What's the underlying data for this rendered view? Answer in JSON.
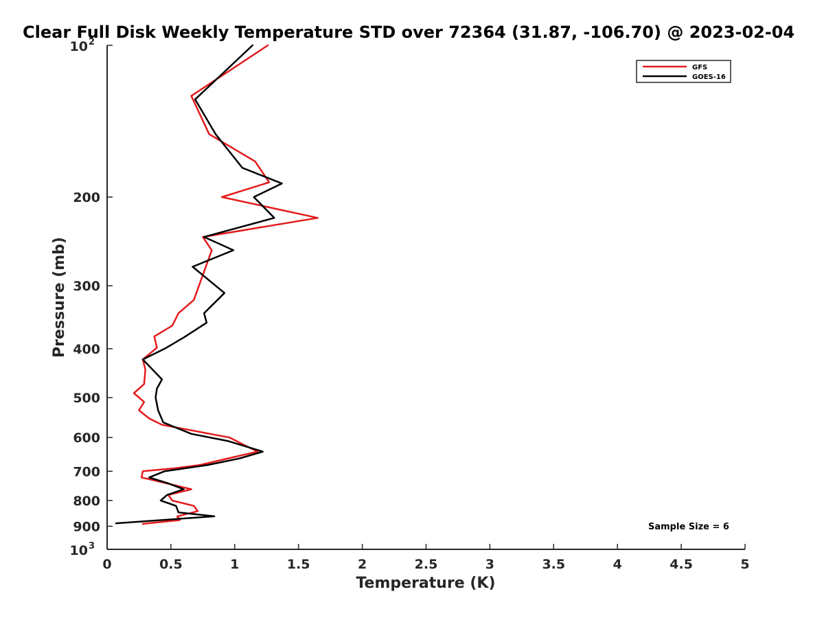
{
  "chart_data": {
    "type": "line",
    "title": "Clear Full Disk Weekly Temperature STD over 72364 (31.87, -106.70) @ 2023-02-04",
    "xlabel": "Temperature (K)",
    "ylabel": "Pressure (mb)",
    "xlim": [
      0,
      5
    ],
    "ylim": [
      100,
      1000
    ],
    "y_scale": "log",
    "y_reversed": true,
    "grid": false,
    "legend_position": "top-right",
    "x_ticks": [
      {
        "value": 0,
        "label": "0"
      },
      {
        "value": 0.5,
        "label": "0.5"
      },
      {
        "value": 1,
        "label": "1"
      },
      {
        "value": 1.5,
        "label": "1.5"
      },
      {
        "value": 2,
        "label": "2"
      },
      {
        "value": 2.5,
        "label": "2.5"
      },
      {
        "value": 3,
        "label": "3"
      },
      {
        "value": 3.5,
        "label": "3.5"
      },
      {
        "value": 4,
        "label": "4"
      },
      {
        "value": 4.5,
        "label": "4.5"
      },
      {
        "value": 5,
        "label": "5"
      }
    ],
    "y_ticks": [
      {
        "value": 100,
        "label": "10",
        "sup": "2"
      },
      {
        "value": 200,
        "label": "200"
      },
      {
        "value": 300,
        "label": "300"
      },
      {
        "value": 400,
        "label": "400"
      },
      {
        "value": 500,
        "label": "500"
      },
      {
        "value": 600,
        "label": "600"
      },
      {
        "value": 700,
        "label": "700"
      },
      {
        "value": 800,
        "label": "800"
      },
      {
        "value": 900,
        "label": "900"
      },
      {
        "value": 1000,
        "label": "10",
        "sup": "3"
      }
    ],
    "series": [
      {
        "name": "GFS",
        "color": "#e41a1c",
        "points": [
          [
            1.26,
            100
          ],
          [
            0.66,
            126
          ],
          [
            0.8,
            150
          ],
          [
            1.16,
            170
          ],
          [
            1.27,
            187
          ],
          [
            0.9,
            200
          ],
          [
            1.65,
            220
          ],
          [
            0.75,
            240
          ],
          [
            0.82,
            255
          ],
          [
            0.68,
            320
          ],
          [
            0.56,
            340
          ],
          [
            0.51,
            360
          ],
          [
            0.37,
            378
          ],
          [
            0.39,
            398
          ],
          [
            0.28,
            420
          ],
          [
            0.3,
            440
          ],
          [
            0.29,
            470
          ],
          [
            0.21,
            490
          ],
          [
            0.29,
            510
          ],
          [
            0.25,
            530
          ],
          [
            0.33,
            550
          ],
          [
            0.43,
            566
          ],
          [
            0.96,
            600
          ],
          [
            1.07,
            620
          ],
          [
            1.18,
            640
          ],
          [
            0.95,
            660
          ],
          [
            0.73,
            680
          ],
          [
            0.54,
            690
          ],
          [
            0.28,
            700
          ],
          [
            0.27,
            720
          ],
          [
            0.47,
            740
          ],
          [
            0.66,
            760
          ],
          [
            0.48,
            780
          ],
          [
            0.51,
            800
          ],
          [
            0.68,
            820
          ],
          [
            0.71,
            840
          ],
          [
            0.55,
            860
          ],
          [
            0.57,
            875
          ],
          [
            0.28,
            890
          ]
        ]
      },
      {
        "name": "GOES-16",
        "color": "#000000",
        "points": [
          [
            1.14,
            100
          ],
          [
            0.69,
            128
          ],
          [
            0.85,
            150
          ],
          [
            1.06,
            175
          ],
          [
            1.37,
            188
          ],
          [
            1.15,
            200
          ],
          [
            1.31,
            220
          ],
          [
            0.76,
            240
          ],
          [
            0.99,
            255
          ],
          [
            0.67,
            275
          ],
          [
            0.92,
            310
          ],
          [
            0.76,
            340
          ],
          [
            0.78,
            355
          ],
          [
            0.6,
            380
          ],
          [
            0.45,
            400
          ],
          [
            0.28,
            420
          ],
          [
            0.43,
            460
          ],
          [
            0.39,
            480
          ],
          [
            0.38,
            500
          ],
          [
            0.4,
            530
          ],
          [
            0.44,
            560
          ],
          [
            0.66,
            590
          ],
          [
            0.95,
            610
          ],
          [
            1.22,
            640
          ],
          [
            1.04,
            660
          ],
          [
            0.79,
            680
          ],
          [
            0.45,
            700
          ],
          [
            0.33,
            720
          ],
          [
            0.48,
            740
          ],
          [
            0.6,
            760
          ],
          [
            0.47,
            780
          ],
          [
            0.42,
            800
          ],
          [
            0.54,
            820
          ],
          [
            0.56,
            845
          ],
          [
            0.84,
            860
          ],
          [
            0.07,
            888
          ]
        ]
      }
    ],
    "annotations": [
      {
        "text": "Sample Size = 6"
      }
    ]
  }
}
